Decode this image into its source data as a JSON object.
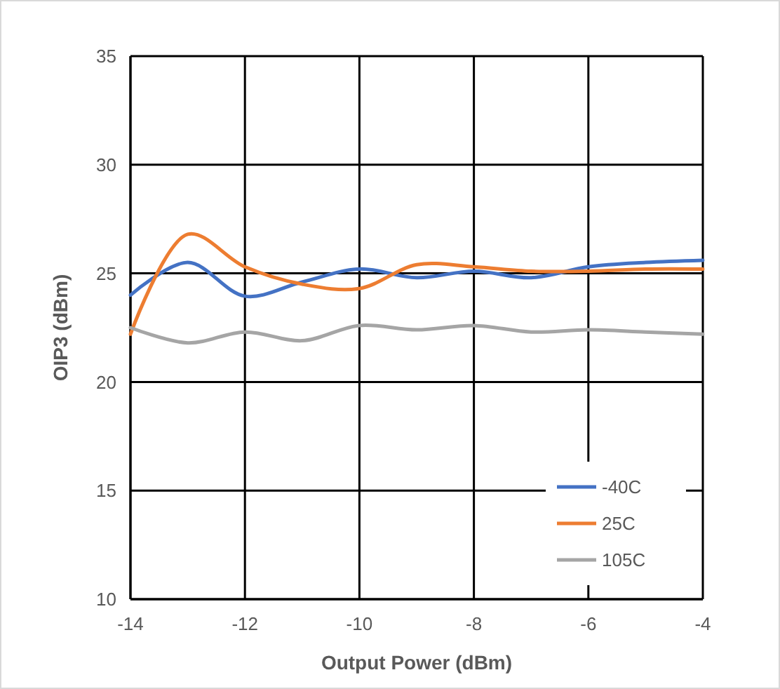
{
  "chart_data": {
    "type": "line",
    "xlabel": "Output Power (dBm)",
    "ylabel": "OIP3 (dBm)",
    "x": [
      -14,
      -13,
      -12,
      -11,
      -10,
      -9,
      -8,
      -7,
      -6,
      -5,
      -4
    ],
    "series": [
      {
        "name": "-40C",
        "color": "#4472c4",
        "values": [
          24.0,
          25.5,
          23.95,
          24.6,
          25.2,
          24.8,
          25.1,
          24.8,
          25.3,
          25.5,
          25.6
        ]
      },
      {
        "name": "25C",
        "color": "#ed7d31",
        "values": [
          22.2,
          26.8,
          25.3,
          24.5,
          24.3,
          25.4,
          25.3,
          25.1,
          25.1,
          25.2,
          25.2
        ]
      },
      {
        "name": "105C",
        "color": "#a5a5a5",
        "values": [
          22.5,
          21.8,
          22.3,
          21.9,
          22.6,
          22.4,
          22.6,
          22.3,
          22.4,
          22.3,
          22.2
        ]
      }
    ],
    "xlim": [
      -14,
      -4
    ],
    "xticks": [
      -14,
      -12,
      -10,
      -8,
      -6,
      -4
    ],
    "ylim": [
      10,
      35
    ],
    "yticks": [
      10,
      15,
      20,
      25,
      30,
      35
    ],
    "grid": true,
    "legend": "bottom right",
    "marker": "none",
    "line_style": "solid"
  }
}
